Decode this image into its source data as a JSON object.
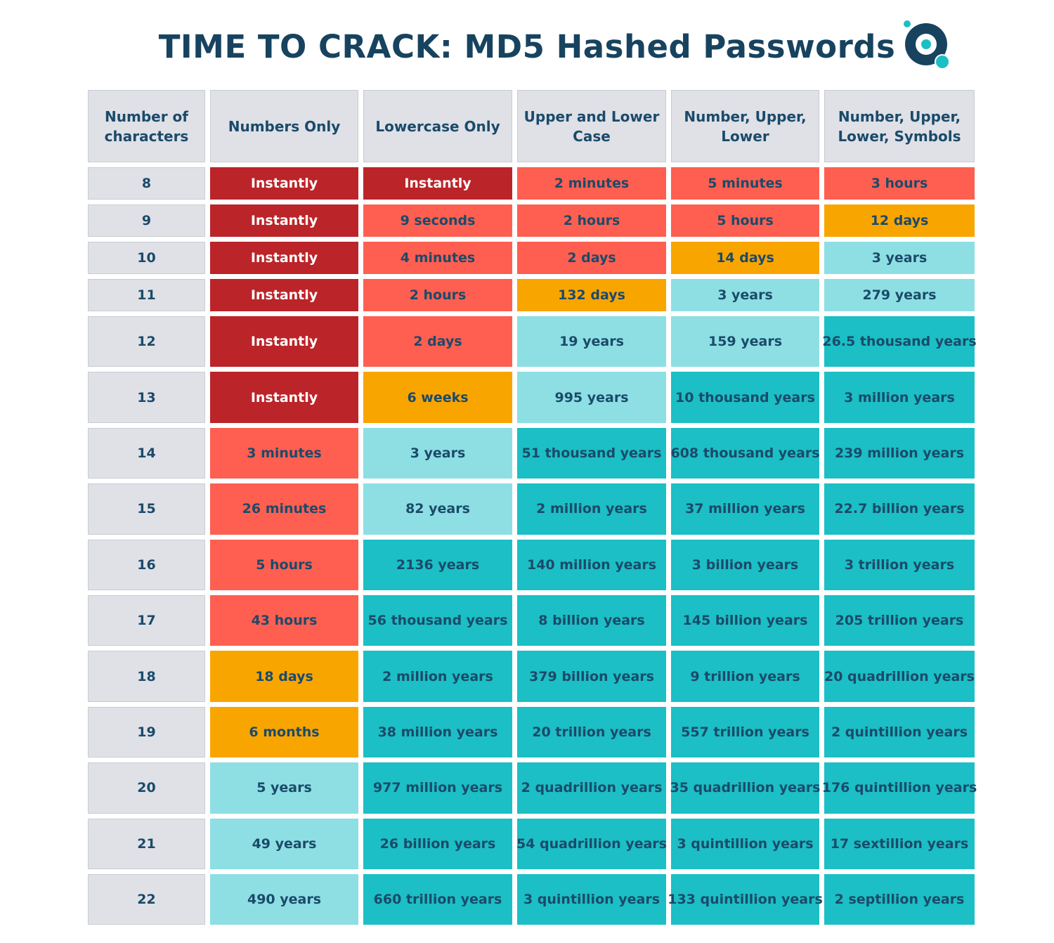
{
  "title": "TIME TO CRACK: MD5 Hashed Passwords",
  "colors": {
    "instant": "#bb2429",
    "red": "#fe5f50",
    "orange": "#f9a500",
    "light": "#8ddfe3",
    "teal": "#1bbfc5",
    "header": "#dfe1e7",
    "text": "#1b4a6a",
    "logo": "#17435f",
    "logo_accent": "#1bbfc5"
  },
  "chart_data": {
    "type": "table",
    "title": "TIME TO CRACK: MD5 Hashed Passwords",
    "columns": [
      "Number of characters",
      "Numbers Only",
      "Lowercase Only",
      "Upper and Lower Case",
      "Number, Upper, Lower",
      "Number, Upper, Lower, Symbols"
    ],
    "rows": [
      {
        "chars": "8",
        "cells": [
          [
            "Instantly",
            "instant"
          ],
          [
            "Instantly",
            "instant"
          ],
          [
            "2 minutes",
            "red"
          ],
          [
            "5 minutes",
            "red"
          ],
          [
            "3 hours",
            "red"
          ]
        ]
      },
      {
        "chars": "9",
        "cells": [
          [
            "Instantly",
            "instant"
          ],
          [
            "9 seconds",
            "red"
          ],
          [
            "2 hours",
            "red"
          ],
          [
            "5 hours",
            "red"
          ],
          [
            "12 days",
            "orange"
          ]
        ]
      },
      {
        "chars": "10",
        "cells": [
          [
            "Instantly",
            "instant"
          ],
          [
            "4 minutes",
            "red"
          ],
          [
            "2 days",
            "red"
          ],
          [
            "14 days",
            "orange"
          ],
          [
            "3 years",
            "light"
          ]
        ]
      },
      {
        "chars": "11",
        "cells": [
          [
            "Instantly",
            "instant"
          ],
          [
            "2 hours",
            "red"
          ],
          [
            "132 days",
            "orange"
          ],
          [
            "3 years",
            "light"
          ],
          [
            "279 years",
            "light"
          ]
        ]
      },
      {
        "chars": "12",
        "cells": [
          [
            "Instantly",
            "instant"
          ],
          [
            "2 days",
            "red"
          ],
          [
            "19 years",
            "light"
          ],
          [
            "159 years",
            "light"
          ],
          [
            "26.5 thousand years",
            "teal"
          ]
        ]
      },
      {
        "chars": "13",
        "cells": [
          [
            "Instantly",
            "instant"
          ],
          [
            "6 weeks",
            "orange"
          ],
          [
            "995 years",
            "light"
          ],
          [
            "10 thousand years",
            "teal"
          ],
          [
            "3 million years",
            "teal"
          ]
        ]
      },
      {
        "chars": "14",
        "cells": [
          [
            "3 minutes",
            "red"
          ],
          [
            "3 years",
            "light"
          ],
          [
            "51 thousand years",
            "teal"
          ],
          [
            "608 thousand years",
            "teal"
          ],
          [
            "239 million years",
            "teal"
          ]
        ]
      },
      {
        "chars": "15",
        "cells": [
          [
            "26 minutes",
            "red"
          ],
          [
            "82 years",
            "light"
          ],
          [
            "2 million years",
            "teal"
          ],
          [
            "37 million years",
            "teal"
          ],
          [
            "22.7 billion years",
            "teal"
          ]
        ]
      },
      {
        "chars": "16",
        "cells": [
          [
            "5 hours",
            "red"
          ],
          [
            "2136 years",
            "teal"
          ],
          [
            "140 million years",
            "teal"
          ],
          [
            "3 billion years",
            "teal"
          ],
          [
            "3 trillion years",
            "teal"
          ]
        ]
      },
      {
        "chars": "17",
        "cells": [
          [
            "43 hours",
            "red"
          ],
          [
            "56 thousand years",
            "teal"
          ],
          [
            "8 billion years",
            "teal"
          ],
          [
            "145  billion years",
            "teal"
          ],
          [
            "205 trillion years",
            "teal"
          ]
        ]
      },
      {
        "chars": "18",
        "cells": [
          [
            "18 days",
            "orange"
          ],
          [
            "2 million years",
            "teal"
          ],
          [
            "379 billion years",
            "teal"
          ],
          [
            "9 trillion years",
            "teal"
          ],
          [
            "20 quadrillion years",
            "teal"
          ]
        ]
      },
      {
        "chars": "19",
        "cells": [
          [
            "6 months",
            "orange"
          ],
          [
            "38 million years",
            "teal"
          ],
          [
            "20 trillion years",
            "teal"
          ],
          [
            "557 trillion years",
            "teal"
          ],
          [
            "2 quintillion years",
            "teal"
          ]
        ]
      },
      {
        "chars": "20",
        "cells": [
          [
            "5 years",
            "light"
          ],
          [
            "977 million years",
            "teal"
          ],
          [
            "2 quadrillion years",
            "teal"
          ],
          [
            "35 quadrillion years",
            "teal"
          ],
          [
            "176 quintillion years",
            "teal"
          ]
        ]
      },
      {
        "chars": "21",
        "cells": [
          [
            "49 years",
            "light"
          ],
          [
            "26 billion years",
            "teal"
          ],
          [
            "54 quadrillion years",
            "teal"
          ],
          [
            "3 quintillion years",
            "teal"
          ],
          [
            "17 sextillion years",
            "teal"
          ]
        ]
      },
      {
        "chars": "22",
        "cells": [
          [
            "490 years",
            "light"
          ],
          [
            "660 trillion years",
            "teal"
          ],
          [
            "3 quintillion years",
            "teal"
          ],
          [
            "133 quintillion years",
            "teal"
          ],
          [
            "2 septillion years",
            "teal"
          ]
        ]
      }
    ]
  }
}
